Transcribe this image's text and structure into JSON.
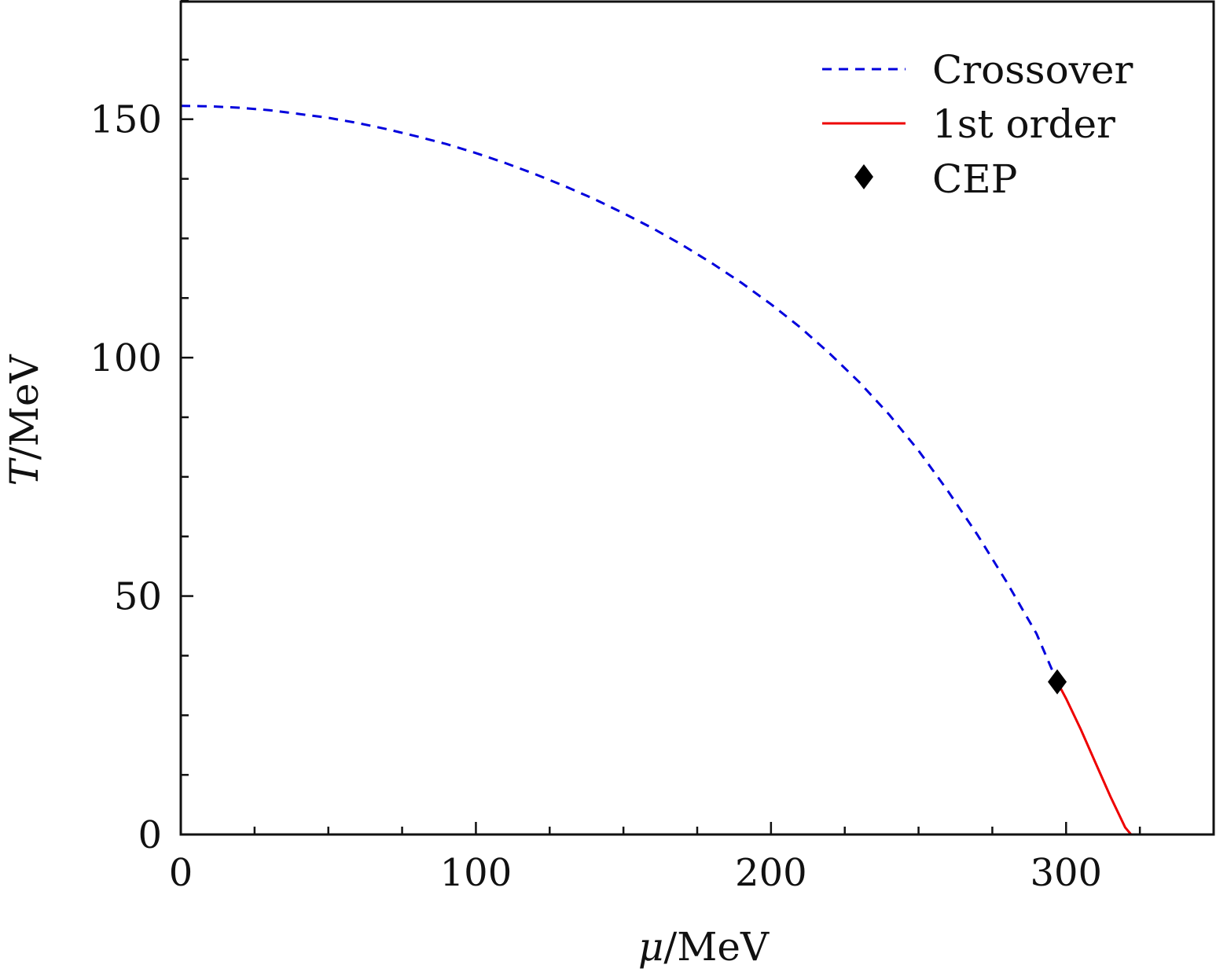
{
  "chart_data": {
    "type": "line",
    "title": "",
    "xlabel": {
      "symbol": "μ",
      "unit": "/MeV"
    },
    "ylabel": {
      "symbol": "T",
      "unit": "/MeV"
    },
    "xlim": [
      0,
      350
    ],
    "ylim": [
      0,
      175
    ],
    "xticks": [
      0,
      100,
      200,
      300
    ],
    "xtick_labels": [
      "0",
      "100",
      "200",
      "300"
    ],
    "x_minor_step": 25,
    "yticks": [
      0,
      50,
      100,
      150
    ],
    "ytick_labels": [
      "0",
      "50",
      "100",
      "150"
    ],
    "y_minor_step": 12.5,
    "grid": false,
    "legend_position": "top-right",
    "series": [
      {
        "name": "Crossover",
        "style": "dashed",
        "color": "#0000dd",
        "x": [
          0,
          10,
          20,
          30,
          40,
          50,
          60,
          70,
          80,
          90,
          100,
          110,
          120,
          130,
          140,
          150,
          160,
          170,
          180,
          190,
          200,
          210,
          220,
          230,
          240,
          250,
          260,
          270,
          280,
          290,
          297
        ],
        "y": [
          152.8,
          152.7,
          152.4,
          151.9,
          151.1,
          150.3,
          149.2,
          147.9,
          146.4,
          144.8,
          142.9,
          140.8,
          138.5,
          136.0,
          133.3,
          130.3,
          127.1,
          123.6,
          119.8,
          115.7,
          111.2,
          106.3,
          100.8,
          94.8,
          88.1,
          80.5,
          72.0,
          62.8,
          52.8,
          42.1,
          32.0
        ]
      },
      {
        "name": "1st order",
        "style": "solid",
        "color": "#ee0000",
        "x": [
          297,
          300,
          305,
          310,
          315,
          320,
          322
        ],
        "y": [
          32.0,
          28.5,
          22.0,
          15.0,
          8.0,
          1.5,
          0
        ]
      }
    ],
    "points": [
      {
        "name": "CEP",
        "marker": "diamond",
        "color": "#000000",
        "x": 297,
        "y": 32.0
      }
    ]
  }
}
